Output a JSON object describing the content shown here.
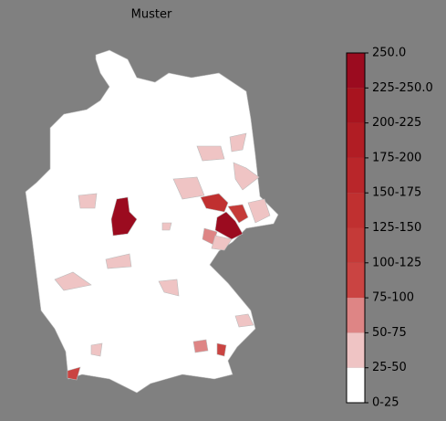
{
  "title": "Muster",
  "colorbar": {
    "labels": [
      "250.0",
      "225-250.0",
      "200-225",
      "175-200",
      "150-175",
      "125-150",
      "100-125",
      "75-100",
      "50-75",
      "25-50",
      "0-25"
    ],
    "colors": [
      "#9b0b1f",
      "#a8141f",
      "#b11d24",
      "#b9262a",
      "#c03030",
      "#c53a38",
      "#ca4442",
      "#de8585",
      "#efc4c4",
      "#ffffff"
    ]
  }
}
